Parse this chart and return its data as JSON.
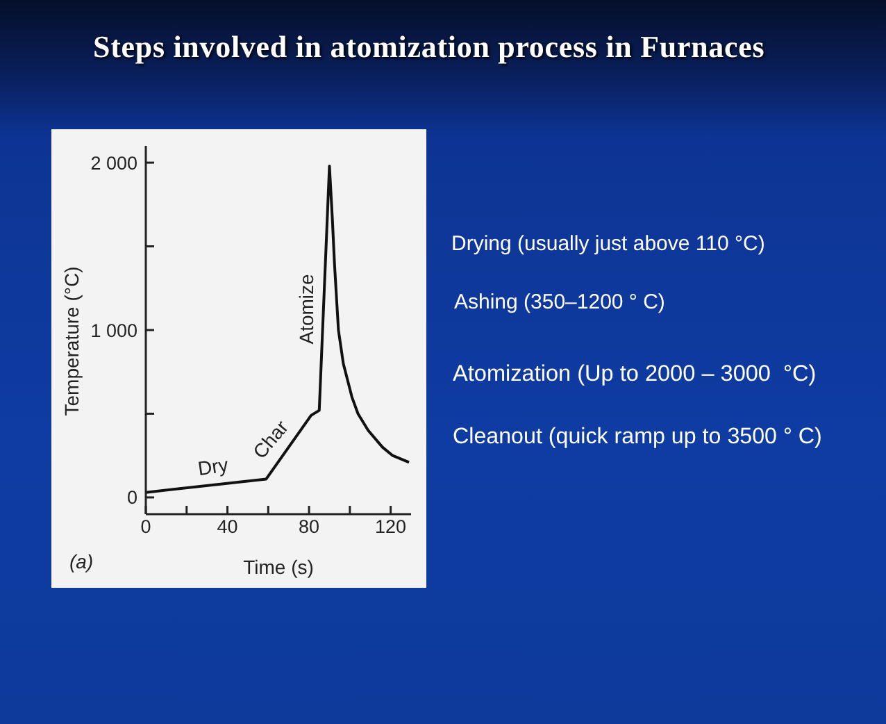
{
  "chart_data": {
    "type": "line",
    "title": "Steps involved in atomization process in Furnaces",
    "xlabel": "Time (s)",
    "ylabel": "Temperature (°C)",
    "x": [
      0,
      59,
      81,
      85,
      90,
      91.4,
      92.5,
      94.4,
      96.8,
      101,
      104,
      109,
      116,
      121,
      129
    ],
    "series": [
      {
        "color": "#111111",
        "values": [
          30,
          110,
          490,
          520,
          1980,
          1670,
          1390,
          1000,
          800,
          600,
          500,
          400,
          300,
          250,
          210
        ]
      }
    ],
    "xlim": [
      0,
      130
    ],
    "xticks": [
      0,
      {
        "value": 20,
        "label": null
      },
      40,
      {
        "value": 60,
        "label": null
      },
      80,
      {
        "value": 100,
        "label": null
      },
      120
    ],
    "ylim": [
      -100,
      2100
    ],
    "yticks": [
      0,
      {
        "value": 500,
        "label": null
      },
      {
        "value": 1000,
        "label": "1 000"
      },
      {
        "value": 1500,
        "label": null
      },
      {
        "value": 2000,
        "label": "2 000"
      }
    ],
    "marker": "none",
    "annotations": [
      {
        "text": "Dry",
        "x": 33,
        "y": 75
      },
      {
        "text": "Char",
        "x": 68.5,
        "y": 274
      },
      {
        "text": "Atomize",
        "x": 87,
        "y": 1100
      },
      "(a)",
      "Drying (usually just above 110 °C)",
      "Ashing (350–1200 ° C)",
      "Atomization (Up to 2000 – 3000  °C)",
      "Cleanout (quick ramp up to 3500 ° C)"
    ]
  }
}
